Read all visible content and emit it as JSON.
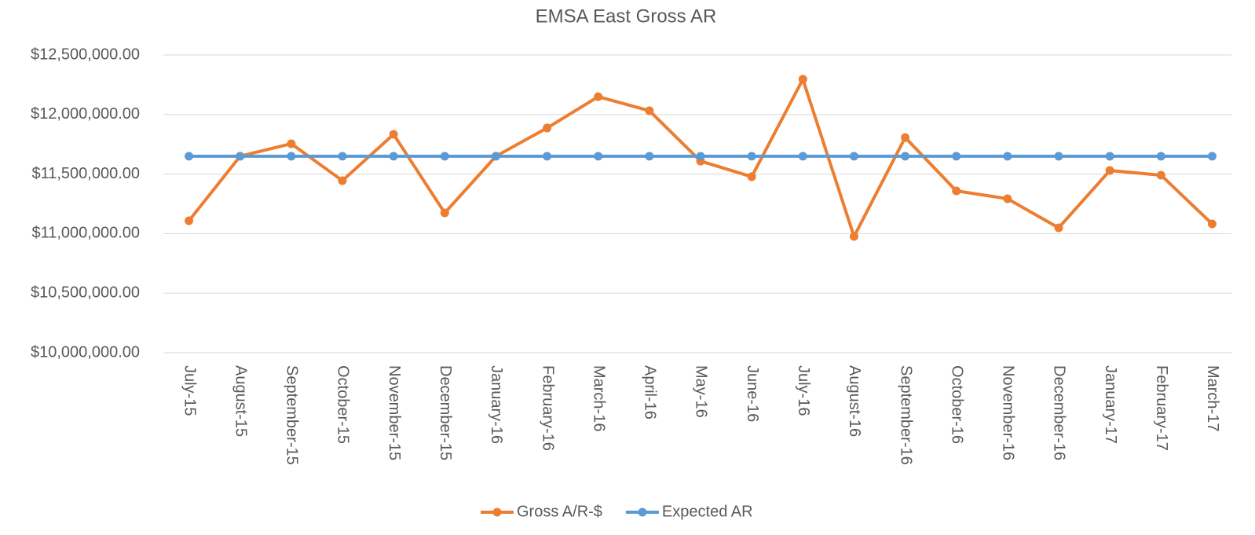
{
  "chart_data": {
    "type": "line",
    "title": "EMSA East Gross AR",
    "categories": [
      "July-15",
      "August-15",
      "September-15",
      "October-15",
      "November-15",
      "December-15",
      "January-16",
      "February-16",
      "March-16",
      "April-16",
      "May-16",
      "June-16",
      "July-16",
      "August-16",
      "September-16",
      "October-16",
      "November-16",
      "December-16",
      "January-17",
      "February-17",
      "March-17"
    ],
    "series": [
      {
        "name": "Gross A/R-$",
        "color": "#ed7d31",
        "values": [
          11108000,
          11650000,
          11755000,
          11445000,
          11834000,
          11174000,
          11650000,
          11887000,
          12150000,
          12032000,
          11609000,
          11478000,
          12296000,
          10976000,
          11807000,
          11359000,
          11293000,
          11049000,
          11530000,
          11491000,
          11082000
        ]
      },
      {
        "name": "Expected AR",
        "color": "#5b9bd5",
        "values": [
          11650000,
          11650000,
          11650000,
          11650000,
          11650000,
          11650000,
          11650000,
          11650000,
          11650000,
          11650000,
          11650000,
          11650000,
          11650000,
          11650000,
          11650000,
          11650000,
          11650000,
          11650000,
          11650000,
          11650000,
          11650000
        ]
      }
    ],
    "ylim": [
      10000000,
      12500000
    ],
    "yticks": [
      {
        "value": 10000000,
        "label": "$10,000,000.00"
      },
      {
        "value": 10500000,
        "label": "$10,500,000.00"
      },
      {
        "value": 11000000,
        "label": "$11,000,000.00"
      },
      {
        "value": 11500000,
        "label": "$11,500,000.00"
      },
      {
        "value": 12000000,
        "label": "$12,000,000.00"
      },
      {
        "value": 12500000,
        "label": "$12,500,000.00"
      }
    ],
    "grid": true,
    "legend": "bottom"
  }
}
